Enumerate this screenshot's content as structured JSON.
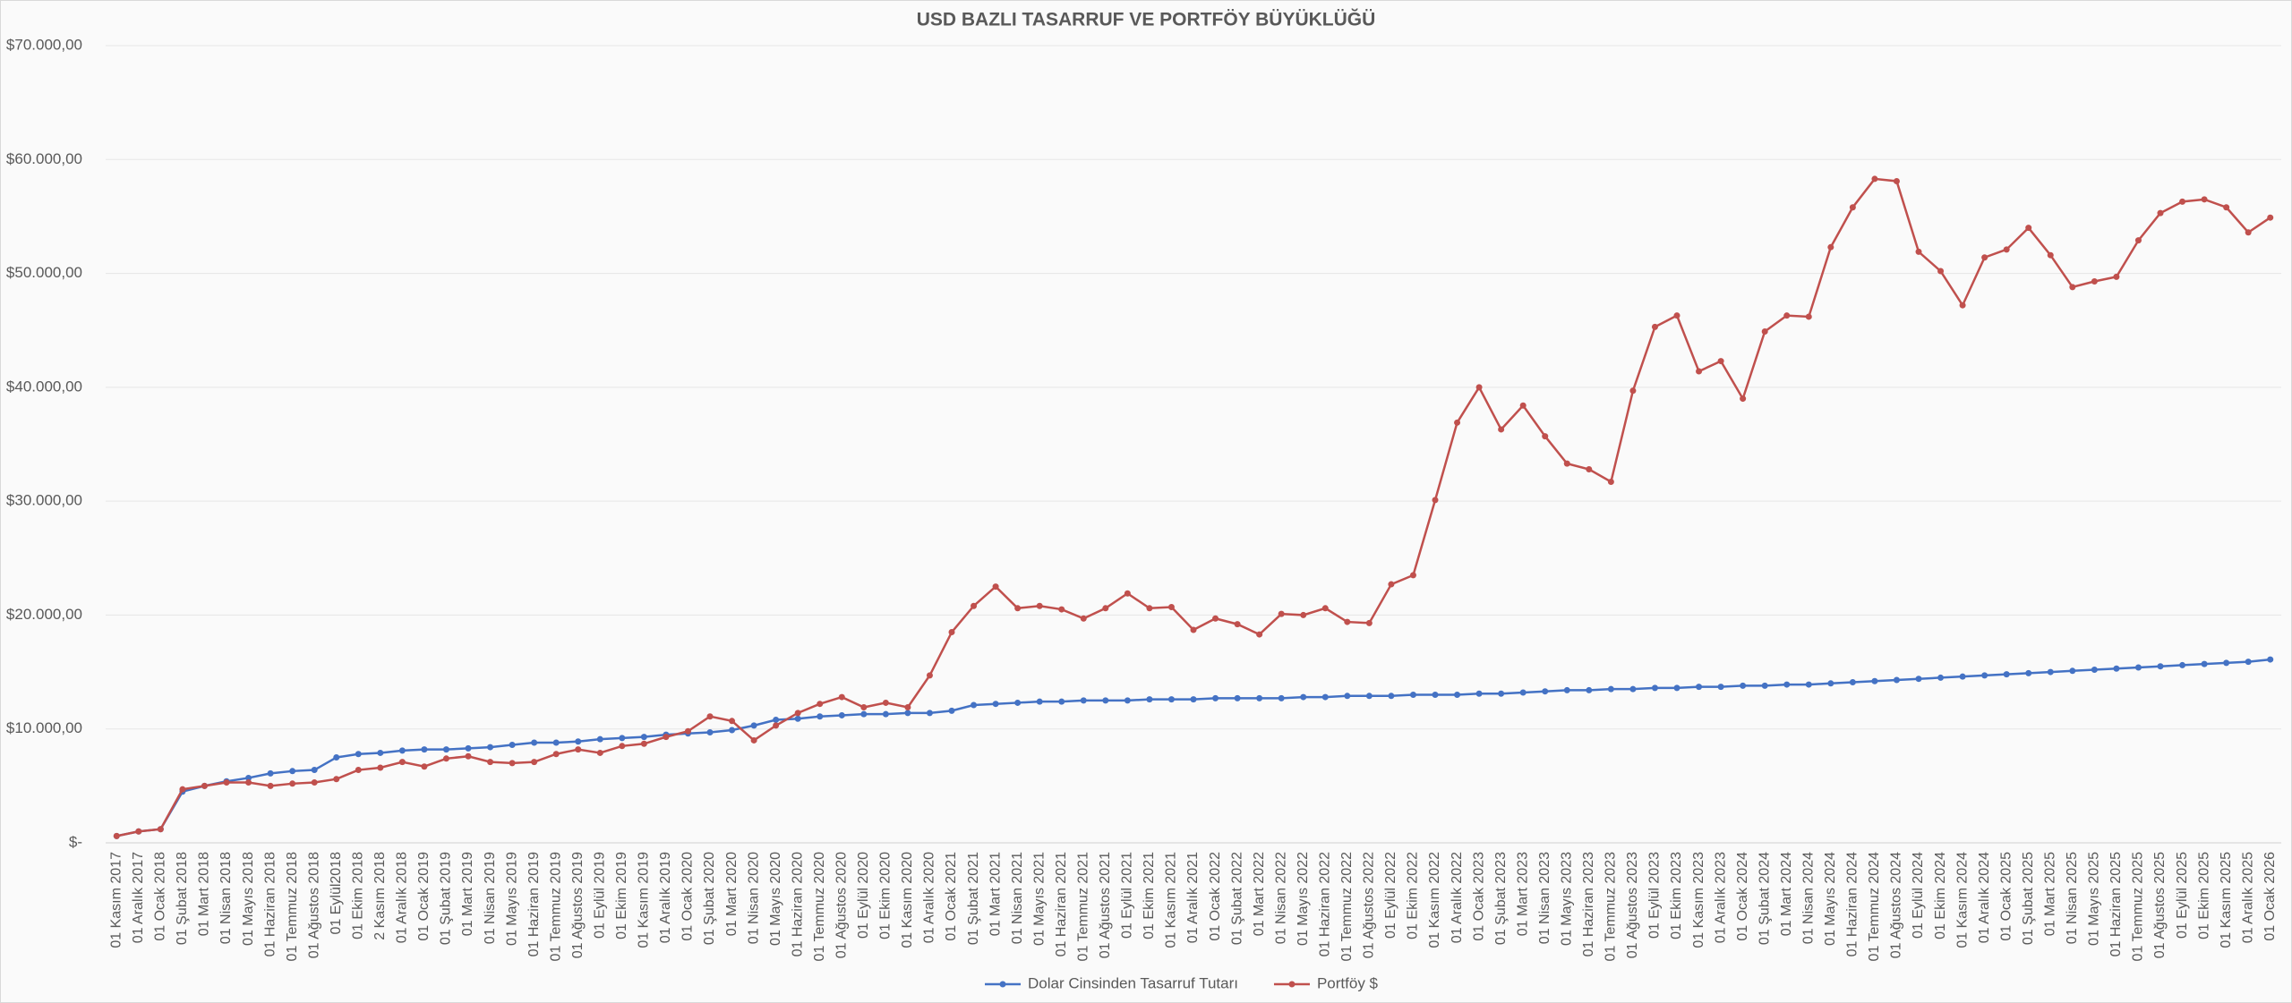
{
  "chart_data": {
    "type": "line",
    "title": "USD BAZLI TASARRUF VE PORTFÖY BÜYÜKLÜĞÜ",
    "categories": [
      "01 Kasım 2017",
      "01 Aralık 2017",
      "01 Ocak 2018",
      "01 Şubat 2018",
      "01 Mart 2018",
      "01 Nisan 2018",
      "01 Mayıs 2018",
      "01 Haziran 2018",
      "01 Temmuz 2018",
      "01 Ağustos 2018",
      "01 Eylül2018",
      "01 Ekim 2018",
      "2 Kasım 2018",
      "01 Aralık 2018",
      "01 Ocak 2019",
      "01 Şubat 2019",
      "01 Mart 2019",
      "01 Nisan 2019",
      "01 Mayıs 2019",
      "01 Haziran 2019",
      "01 Temmuz 2019",
      "01 Ağustos 2019",
      "01 Eylül 2019",
      "01 Ekim 2019",
      "01 Kasım 2019",
      "01 Aralık 2019",
      "01 Ocak 2020",
      "01 Şubat 2020",
      "01 Mart 2020",
      "01 Nisan 2020",
      "01 Mayıs 2020",
      "01 Haziran 2020",
      "01 Temmuz 2020",
      "01 Ağustos 2020",
      "01 Eylül 2020",
      "01 Ekim 2020",
      "01 Kasım 2020",
      "01 Aralık 2020",
      "01 Ocak 2021",
      "01 Şubat 2021",
      "01 Mart 2021",
      "01 Nisan 2021",
      "01 Mayıs 2021",
      "01 Haziran 2021",
      "01 Temmuz 2021",
      "01 Ağustos 2021",
      "01 Eylül 2021",
      "01 Ekim 2021",
      "01 Kasım 2021",
      "01 Aralık 2021",
      "01 Ocak 2022",
      "01 Şubat 2022",
      "01 Mart 2022",
      "01 Nisan 2022",
      "01 Mayıs 2022",
      "01 Haziran 2022",
      "01 Temmuz 2022",
      "01 Ağustos 2022",
      "01 Eylül 2022",
      "01 Ekim 2022",
      "01 Kasım 2022",
      "01 Aralık 2022",
      "01 Ocak 2023",
      "01 Şubat 2023",
      "01 Mart 2023",
      "01 Nisan 2023",
      "01 Mayıs 2023",
      "01 Haziran 2023",
      "01 Temmuz 2023",
      "01 Ağustos 2023",
      "01 Eylül 2023",
      "01 Ekim 2023",
      "01 Kasım 2023",
      "01 Aralık 2023",
      "01 Ocak 2024",
      "01 Şubat 2024",
      "01 Mart 2024",
      "01 Nisan 2024",
      "01 Mayıs 2024",
      "01 Haziran 2024",
      "01 Temmuz 2024",
      "01 Ağustos 2024",
      "01 Eylül 2024",
      "01 Ekim 2024",
      "01 Kasım 2024",
      "01 Aralık 2024",
      "01 Ocak 2025",
      "01 Şubat 2025",
      "01 Mart 2025",
      "01 Nisan 2025",
      "01 Mayıs 2025",
      "01 Haziran 2025",
      "01 Temmuz 2025",
      "01 Ağustos 2025",
      "01 Eylül 2025",
      "01 Ekim 2025",
      "01 Kasım 2025",
      "01 Aralık 2025",
      "01 Ocak 2026"
    ],
    "series": [
      {
        "name": "Dolar Cinsinden Tasarruf Tutarı",
        "color": "#4472c4",
        "values": [
          600,
          1000,
          1200,
          4500,
          5000,
          5400,
          5700,
          6100,
          6300,
          6400,
          7500,
          7800,
          7900,
          8100,
          8200,
          8200,
          8300,
          8400,
          8600,
          8800,
          8800,
          8900,
          9100,
          9200,
          9300,
          9500,
          9600,
          9700,
          9900,
          10300,
          10800,
          10900,
          11100,
          11200,
          11300,
          11300,
          11400,
          11400,
          11600,
          12100,
          12200,
          12300,
          12400,
          12400,
          12500,
          12500,
          12500,
          12600,
          12600,
          12600,
          12700,
          12700,
          12700,
          12700,
          12800,
          12800,
          12900,
          12900,
          12900,
          13000,
          13000,
          13000,
          13100,
          13100,
          13200,
          13300,
          13400,
          13400,
          13500,
          13500,
          13600,
          13600,
          13700,
          13700,
          13800,
          13800,
          13900,
          13900,
          14000,
          14100,
          14200,
          14300,
          14400,
          14500,
          14600,
          14700,
          14800,
          14900,
          15000,
          15100,
          15200,
          15300,
          15400,
          15500,
          15600,
          15700,
          15800,
          15900,
          16100
        ]
      },
      {
        "name": "Portföy $",
        "color": "#c0504d",
        "values": [
          600,
          1000,
          1200,
          4700,
          5000,
          5300,
          5300,
          5000,
          5200,
          5300,
          5600,
          6400,
          6600,
          7100,
          6700,
          7400,
          7600,
          7100,
          7000,
          7100,
          7800,
          8200,
          7900,
          8500,
          8700,
          9300,
          9800,
          11100,
          10700,
          9000,
          10300,
          11400,
          12200,
          12800,
          11900,
          12300,
          11900,
          14700,
          18500,
          20800,
          22500,
          20600,
          20800,
          20500,
          19700,
          20600,
          21900,
          20600,
          20700,
          18700,
          19700,
          19200,
          18300,
          20100,
          20000,
          20600,
          19400,
          19300,
          22700,
          23500,
          30100,
          36900,
          40000,
          36300,
          38400,
          35700,
          33300,
          32800,
          31700,
          39700,
          45300,
          46300,
          41400,
          42300,
          39000,
          44900,
          46300,
          46200,
          52300,
          55800,
          58300,
          58100,
          51900,
          50200,
          47200,
          51400,
          52100,
          54000,
          51600,
          48800,
          49300,
          49700,
          52900,
          55300,
          56300,
          56500,
          55800,
          53600,
          54900
        ]
      }
    ],
    "ylim": [
      0,
      70000
    ],
    "yticks": [
      {
        "value": 0,
        "label": "$-"
      },
      {
        "value": 10000,
        "label": "$10.000,00"
      },
      {
        "value": 20000,
        "label": "$20.000,00"
      },
      {
        "value": 30000,
        "label": "$30.000,00"
      },
      {
        "value": 40000,
        "label": "$40.000,00"
      },
      {
        "value": 50000,
        "label": "$50.000,00"
      },
      {
        "value": 60000,
        "label": "$60.000,00"
      },
      {
        "value": 70000,
        "label": "$70.000,00"
      }
    ],
    "grid": true,
    "legend": "bottom"
  }
}
